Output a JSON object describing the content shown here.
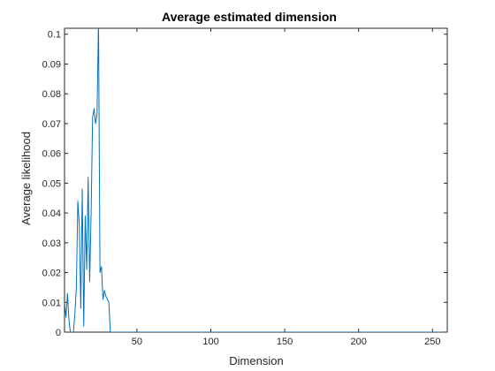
{
  "chart_data": {
    "type": "line",
    "title": "Average estimated dimension",
    "xlabel": "Dimension",
    "ylabel": "Average likelihood",
    "xlim": [
      1,
      260
    ],
    "ylim": [
      0,
      0.102
    ],
    "xticks": [
      50,
      100,
      150,
      200,
      250
    ],
    "yticks": [
      0,
      0.01,
      0.02,
      0.03,
      0.04,
      0.05,
      0.06,
      0.07,
      0.08,
      0.09,
      0.1
    ],
    "ytick_labels": [
      "0",
      "0.01",
      "0.02",
      "0.03",
      "0.04",
      "0.05",
      "0.06",
      "0.07",
      "0.08",
      "0.09",
      "0.1"
    ],
    "xtick_labels": [
      "50",
      "100",
      "150",
      "200",
      "250"
    ],
    "grid": false,
    "line_color": "#0072BD",
    "series": [
      {
        "x": [
          1,
          2,
          3,
          4,
          5,
          6,
          7,
          8,
          9,
          10,
          11,
          12,
          13,
          14,
          15,
          16,
          17,
          18,
          19,
          20,
          21,
          22,
          23,
          24,
          25,
          26,
          27,
          28,
          29,
          30,
          31,
          32,
          33,
          34,
          35,
          36,
          38,
          40,
          50,
          100,
          150,
          200,
          250,
          256
        ],
        "y": [
          0.01,
          0.005,
          0.013,
          0.004,
          0.0,
          0.0,
          0.0,
          0.006,
          0.015,
          0.044,
          0.036,
          0.008,
          0.048,
          0.002,
          0.039,
          0.021,
          0.052,
          0.017,
          0.04,
          0.072,
          0.075,
          0.07,
          0.073,
          0.105,
          0.02,
          0.022,
          0.011,
          0.014,
          0.012,
          0.011,
          0.01,
          0.0,
          0.0,
          0.0,
          0.0,
          0.0,
          0.0,
          0.0,
          0.0,
          0.0,
          0.0,
          0.0,
          0.0,
          0.0
        ]
      }
    ]
  }
}
